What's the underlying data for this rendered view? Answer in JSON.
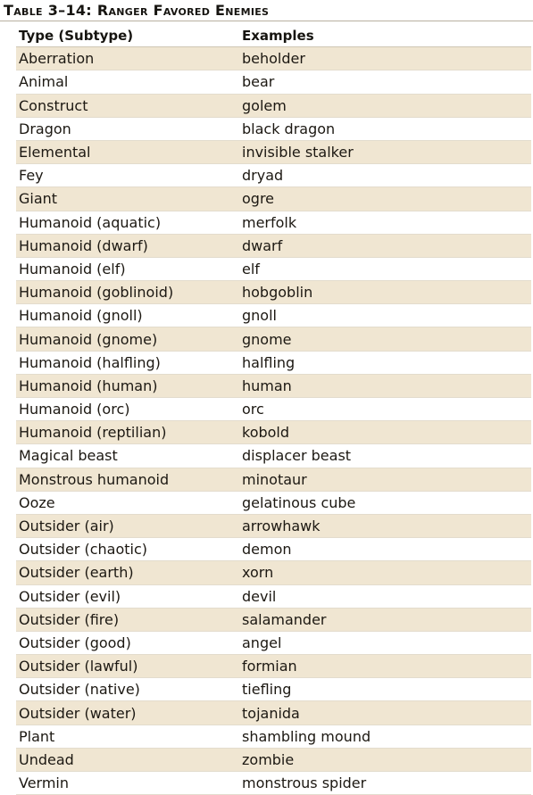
{
  "table": {
    "title": "Table 3–14: Ranger Favored Enemies",
    "headers": [
      "Type (Subtype)",
      "Examples"
    ],
    "accent_color": "#f0e6d2",
    "rows": [
      [
        "Aberration",
        "beholder"
      ],
      [
        "Animal",
        "bear"
      ],
      [
        "Construct",
        "golem"
      ],
      [
        "Dragon",
        "black dragon"
      ],
      [
        "Elemental",
        "invisible stalker"
      ],
      [
        "Fey",
        "dryad"
      ],
      [
        "Giant",
        "ogre"
      ],
      [
        "Humanoid (aquatic)",
        "merfolk"
      ],
      [
        "Humanoid (dwarf)",
        "dwarf"
      ],
      [
        "Humanoid (elf)",
        "elf"
      ],
      [
        "Humanoid (goblinoid)",
        "hobgoblin"
      ],
      [
        "Humanoid (gnoll)",
        "gnoll"
      ],
      [
        "Humanoid (gnome)",
        "gnome"
      ],
      [
        "Humanoid (halfling)",
        "halfling"
      ],
      [
        "Humanoid (human)",
        "human"
      ],
      [
        "Humanoid (orc)",
        "orc"
      ],
      [
        "Humanoid (reptilian)",
        "kobold"
      ],
      [
        "Magical beast",
        "displacer beast"
      ],
      [
        "Monstrous humanoid",
        "minotaur"
      ],
      [
        "Ooze",
        "gelatinous cube"
      ],
      [
        "Outsider (air)",
        "arrowhawk"
      ],
      [
        "Outsider (chaotic)",
        "demon"
      ],
      [
        "Outsider (earth)",
        "xorn"
      ],
      [
        "Outsider (evil)",
        "devil"
      ],
      [
        "Outsider (fire)",
        "salamander"
      ],
      [
        "Outsider (good)",
        "angel"
      ],
      [
        "Outsider (lawful)",
        "formian"
      ],
      [
        "Outsider (native)",
        "tiefling"
      ],
      [
        "Outsider (water)",
        "tojanida"
      ],
      [
        "Plant",
        "shambling mound"
      ],
      [
        "Undead",
        "zombie"
      ],
      [
        "Vermin",
        "monstrous spider"
      ]
    ]
  }
}
